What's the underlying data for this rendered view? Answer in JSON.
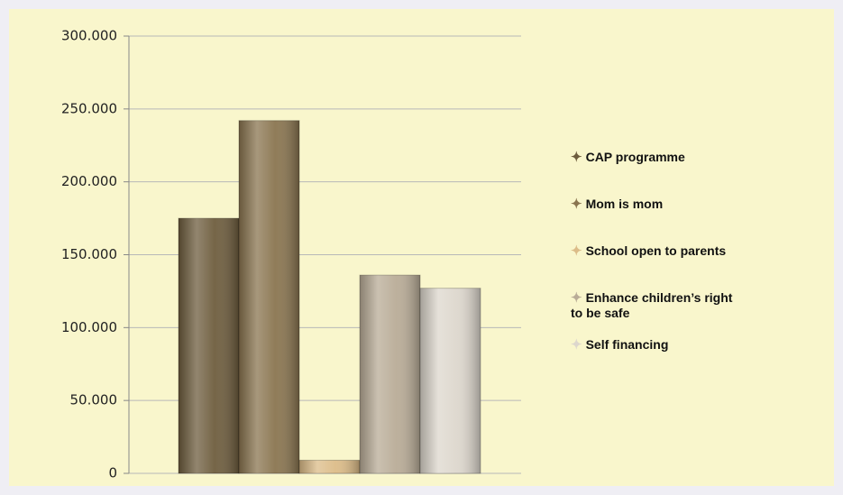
{
  "chart_data": {
    "type": "bar",
    "categories": [
      null
    ],
    "series": [
      {
        "name": "CAP programme",
        "color": "#6e5d3e",
        "values": [
          175000
        ]
      },
      {
        "name": "Mom is mom",
        "color": "#8a7550",
        "values": [
          242000
        ]
      },
      {
        "name": "School open to parents",
        "color": "#dcbc88",
        "values": [
          9000
        ]
      },
      {
        "name": "Enhance children’s right to be safe",
        "color": "#b9ac97",
        "values": [
          136000
        ]
      },
      {
        "name": "Self financing",
        "color": "#ddd7cd",
        "values": [
          127000
        ]
      }
    ],
    "ylim": [
      0,
      300000
    ],
    "yticks": [
      0,
      {
        "value": 50000,
        "label": "50.000"
      },
      {
        "value": 100000,
        "label": "100.000"
      },
      {
        "value": 150000,
        "label": "150.000"
      },
      {
        "value": 200000,
        "label": "200.000"
      },
      {
        "value": 250000,
        "label": "250.000"
      },
      {
        "value": 300000,
        "label": "300.000"
      }
    ],
    "grid": true,
    "legend": "right"
  }
}
